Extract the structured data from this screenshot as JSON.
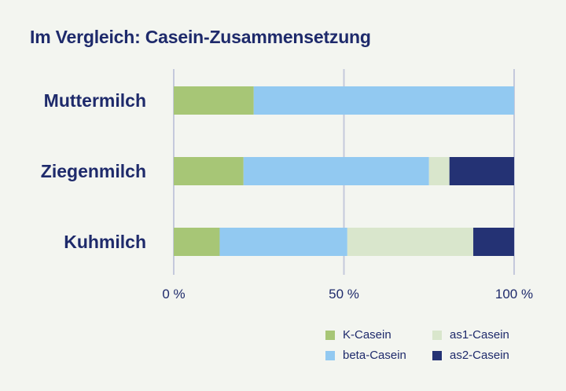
{
  "title": "Im Vergleich: Casein-Zusammensetzung",
  "chart_data": {
    "type": "bar",
    "orientation": "horizontal",
    "stacked": true,
    "categories": [
      "Muttermilch",
      "Ziegenmilch",
      "Kuhmilch"
    ],
    "series": [
      {
        "name": "K-Casein",
        "color": "#a7c676",
        "values": [
          23.5,
          20.5,
          13.5
        ]
      },
      {
        "name": "beta-Casein",
        "color": "#92c9f1",
        "values": [
          76.5,
          54.5,
          37.5
        ]
      },
      {
        "name": "as1-Casein",
        "color": "#d9e6cc",
        "values": [
          0,
          6,
          37
        ]
      },
      {
        "name": "as2-Casein",
        "color": "#243274",
        "values": [
          0,
          19,
          12
        ]
      }
    ],
    "xlim": [
      0,
      100
    ],
    "xticks": [
      0,
      50,
      100
    ],
    "xtick_labels": [
      "0 %",
      "50 %",
      "100 %"
    ],
    "gridlines": true,
    "legend": {
      "position": "bottom-right",
      "order": [
        "K-Casein",
        "as1-Casein",
        "beta-Casein",
        "as2-Casein"
      ]
    }
  }
}
